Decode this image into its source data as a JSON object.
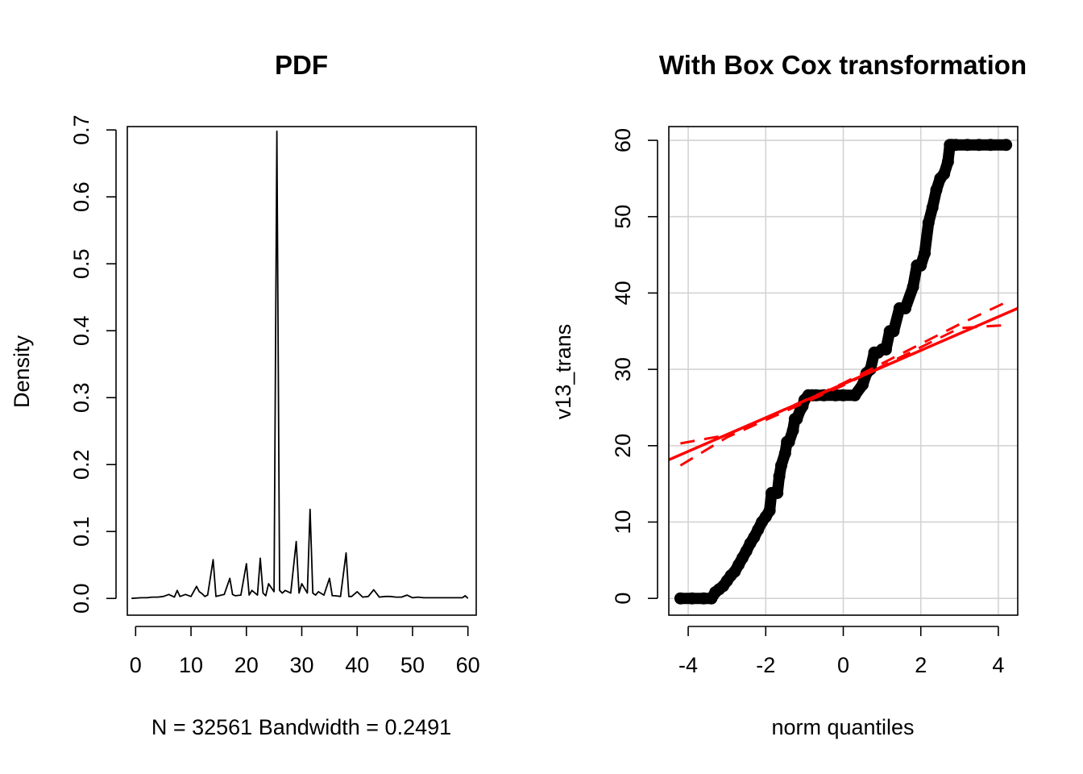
{
  "chart_data": [
    {
      "type": "line",
      "title": "PDF",
      "xlabel": "N = 32561   Bandwidth = 0.2491",
      "ylabel": "Density",
      "xlim": [
        -1.5,
        61.5
      ],
      "ylim": [
        -0.025,
        0.705
      ],
      "xticks": [
        0,
        10,
        20,
        30,
        40,
        50,
        60
      ],
      "yticks": [
        0.0,
        0.1,
        0.2,
        0.3,
        0.4,
        0.5,
        0.6,
        0.7
      ],
      "ytick_labels": [
        "0.0",
        "0.1",
        "0.2",
        "0.3",
        "0.4",
        "0.5",
        "0.6",
        "0.7"
      ],
      "grid": false,
      "series": [
        {
          "x": [
            -0.75,
            1,
            2,
            3,
            4,
            5,
            6,
            7,
            7.5,
            8,
            9,
            10,
            11,
            11.5,
            12,
            12.5,
            13,
            14,
            14.5,
            15,
            16,
            17,
            17.5,
            18,
            19,
            20,
            20.5,
            21,
            22,
            22.5,
            23,
            23.5,
            24,
            25,
            25.5,
            26,
            26.5,
            27,
            28,
            29,
            29.5,
            30,
            31,
            31.5,
            32,
            32.5,
            33,
            34,
            35,
            35.5,
            36,
            37,
            38,
            38.5,
            39,
            40,
            41,
            42,
            43,
            44,
            45,
            46,
            47,
            48,
            49,
            50,
            51,
            52,
            53,
            54,
            55,
            56,
            57,
            58,
            59,
            59.5,
            60
          ],
          "y": [
            0.0,
            0.001,
            0.001,
            0.002,
            0.002,
            0.003,
            0.006,
            0.002,
            0.012,
            0.003,
            0.006,
            0.003,
            0.018,
            0.01,
            0.007,
            0.003,
            0.005,
            0.058,
            0.003,
            0.004,
            0.006,
            0.03,
            0.006,
            0.004,
            0.005,
            0.052,
            0.005,
            0.012,
            0.005,
            0.06,
            0.008,
            0.004,
            0.022,
            0.01,
            0.698,
            0.012,
            0.008,
            0.012,
            0.008,
            0.085,
            0.008,
            0.022,
            0.008,
            0.133,
            0.008,
            0.005,
            0.01,
            0.005,
            0.03,
            0.004,
            0.004,
            0.003,
            0.068,
            0.003,
            0.003,
            0.01,
            0.002,
            0.003,
            0.013,
            0.002,
            0.003,
            0.003,
            0.002,
            0.002,
            0.005,
            0.001,
            0.002,
            0.001,
            0.001,
            0.001,
            0.001,
            0.001,
            0.001,
            0.001,
            0.001,
            0.004,
            0.0
          ]
        }
      ]
    },
    {
      "type": "scatter",
      "title": "With Box Cox transformation",
      "xlabel": "norm quantiles",
      "ylabel": "v13_trans",
      "xlim": [
        -4.5,
        4.5
      ],
      "ylim": [
        -2.2,
        61.8
      ],
      "xticks": [
        -4,
        -2,
        0,
        2,
        4
      ],
      "yticks": [
        0,
        10,
        20,
        30,
        40,
        50,
        60
      ],
      "grid": true,
      "series": [
        {
          "name": "points",
          "color": "#000000",
          "x": [
            -4.2,
            -3.9,
            -3.6,
            -3.4,
            -3.3,
            -3.2,
            -3.1,
            -3.0,
            -2.9,
            -2.8,
            -2.7,
            -2.6,
            -2.5,
            -2.4,
            -2.3,
            -2.2,
            -2.1,
            -2.0,
            -1.9,
            -1.85,
            -1.8,
            -1.7,
            -1.65,
            -1.6,
            -1.5,
            -1.45,
            -1.4,
            -1.3,
            -1.25,
            -1.2,
            -1.1,
            -1.05,
            -1.0,
            -0.9,
            -0.8,
            -0.7,
            -0.5,
            -0.2,
            0.0,
            0.3,
            0.5,
            0.6,
            0.7,
            0.8,
            0.9,
            1.0,
            1.1,
            1.2,
            1.3,
            1.45,
            1.6,
            1.8,
            1.9,
            2.0,
            2.1,
            2.2,
            2.3,
            2.4,
            2.5,
            2.6,
            2.7,
            2.75,
            2.8,
            2.9,
            3.2,
            3.5,
            3.8,
            4.2
          ],
          "y": [
            0.0,
            0.0,
            0.0,
            0.0,
            0.8,
            1.2,
            1.6,
            2.3,
            3.0,
            3.5,
            4.4,
            5.3,
            6.2,
            7.2,
            8.0,
            9.0,
            10.0,
            10.7,
            11.5,
            13.8,
            13.8,
            13.8,
            16.0,
            17.4,
            19.0,
            20.5,
            20.5,
            22.0,
            23.5,
            23.5,
            24.8,
            25.2,
            26.0,
            26.6,
            26.6,
            26.6,
            26.6,
            26.6,
            26.6,
            26.6,
            28.0,
            29.5,
            30.0,
            32.2,
            32.2,
            32.6,
            32.6,
            35.0,
            35.0,
            38.0,
            38.0,
            40.8,
            43.6,
            43.6,
            45.2,
            49.2,
            51.2,
            53.5,
            55.0,
            55.6,
            57.2,
            59.4,
            59.4,
            59.4,
            59.4,
            59.4,
            59.4,
            59.4
          ]
        },
        {
          "name": "reference line",
          "color": "#ff0000",
          "x": [
            -4.5,
            4.5
          ],
          "y": [
            18.15,
            38.0
          ]
        },
        {
          "name": "confidence band upper",
          "color": "#ff0000",
          "dashed": true,
          "x": [
            -4.2,
            -3.0,
            0.0,
            3.0,
            4.2
          ],
          "y": [
            20.3,
            21.4,
            28.2,
            35.9,
            38.8
          ]
        },
        {
          "name": "confidence band lower",
          "color": "#ff0000",
          "dashed": true,
          "x": [
            -4.2,
            -3.0,
            0.0,
            3.0,
            4.2
          ],
          "y": [
            17.4,
            21.1,
            27.9,
            35.4,
            35.8
          ]
        }
      ]
    }
  ]
}
